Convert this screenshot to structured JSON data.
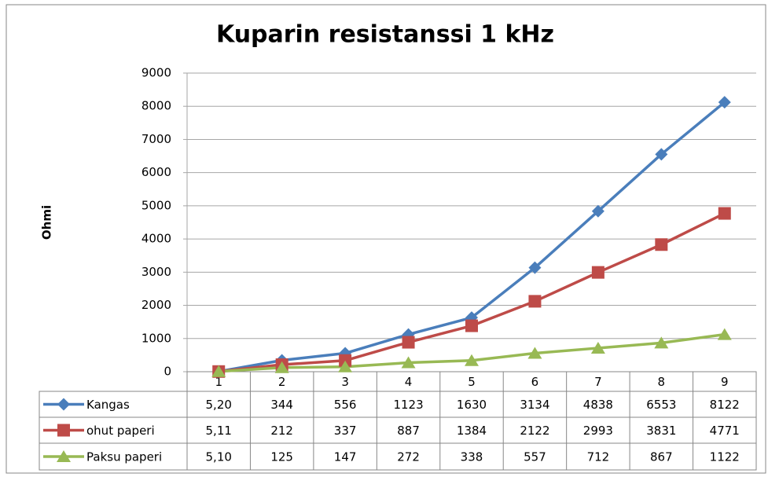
{
  "chart_data": {
    "type": "line",
    "title": "Kuparin resistanssi 1 kHz",
    "y_label": "Ohmi",
    "categories": [
      "1",
      "2",
      "3",
      "4",
      "5",
      "6",
      "7",
      "8",
      "9"
    ],
    "series": [
      {
        "name": "Kangas",
        "color": "#4a7ebb",
        "marker": "diamond",
        "values": [
          5.2,
          344,
          556,
          1123,
          1630,
          3134,
          4838,
          6553,
          8122
        ],
        "value_labels": [
          "5,20",
          "344",
          "556",
          "1123",
          "1630",
          "3134",
          "4838",
          "6553",
          "8122"
        ]
      },
      {
        "name": "ohut paperi",
        "color": "#be4b48",
        "marker": "square",
        "values": [
          5.11,
          212,
          337,
          887,
          1384,
          2122,
          2993,
          3831,
          4771
        ],
        "value_labels": [
          "5,11",
          "212",
          "337",
          "887",
          "1384",
          "2122",
          "2993",
          "3831",
          "4771"
        ]
      },
      {
        "name": "Paksu paperi",
        "color": "#98b954",
        "marker": "triangle",
        "values": [
          5.1,
          125,
          147,
          272,
          338,
          557,
          712,
          867,
          1122
        ],
        "value_labels": [
          "5,10",
          "125",
          "147",
          "272",
          "338",
          "557",
          "712",
          "867",
          "1122"
        ]
      }
    ],
    "ylim": [
      0,
      9000
    ],
    "yticks": [
      0,
      1000,
      2000,
      3000,
      4000,
      5000,
      6000,
      7000,
      8000,
      9000
    ],
    "grid": true
  }
}
